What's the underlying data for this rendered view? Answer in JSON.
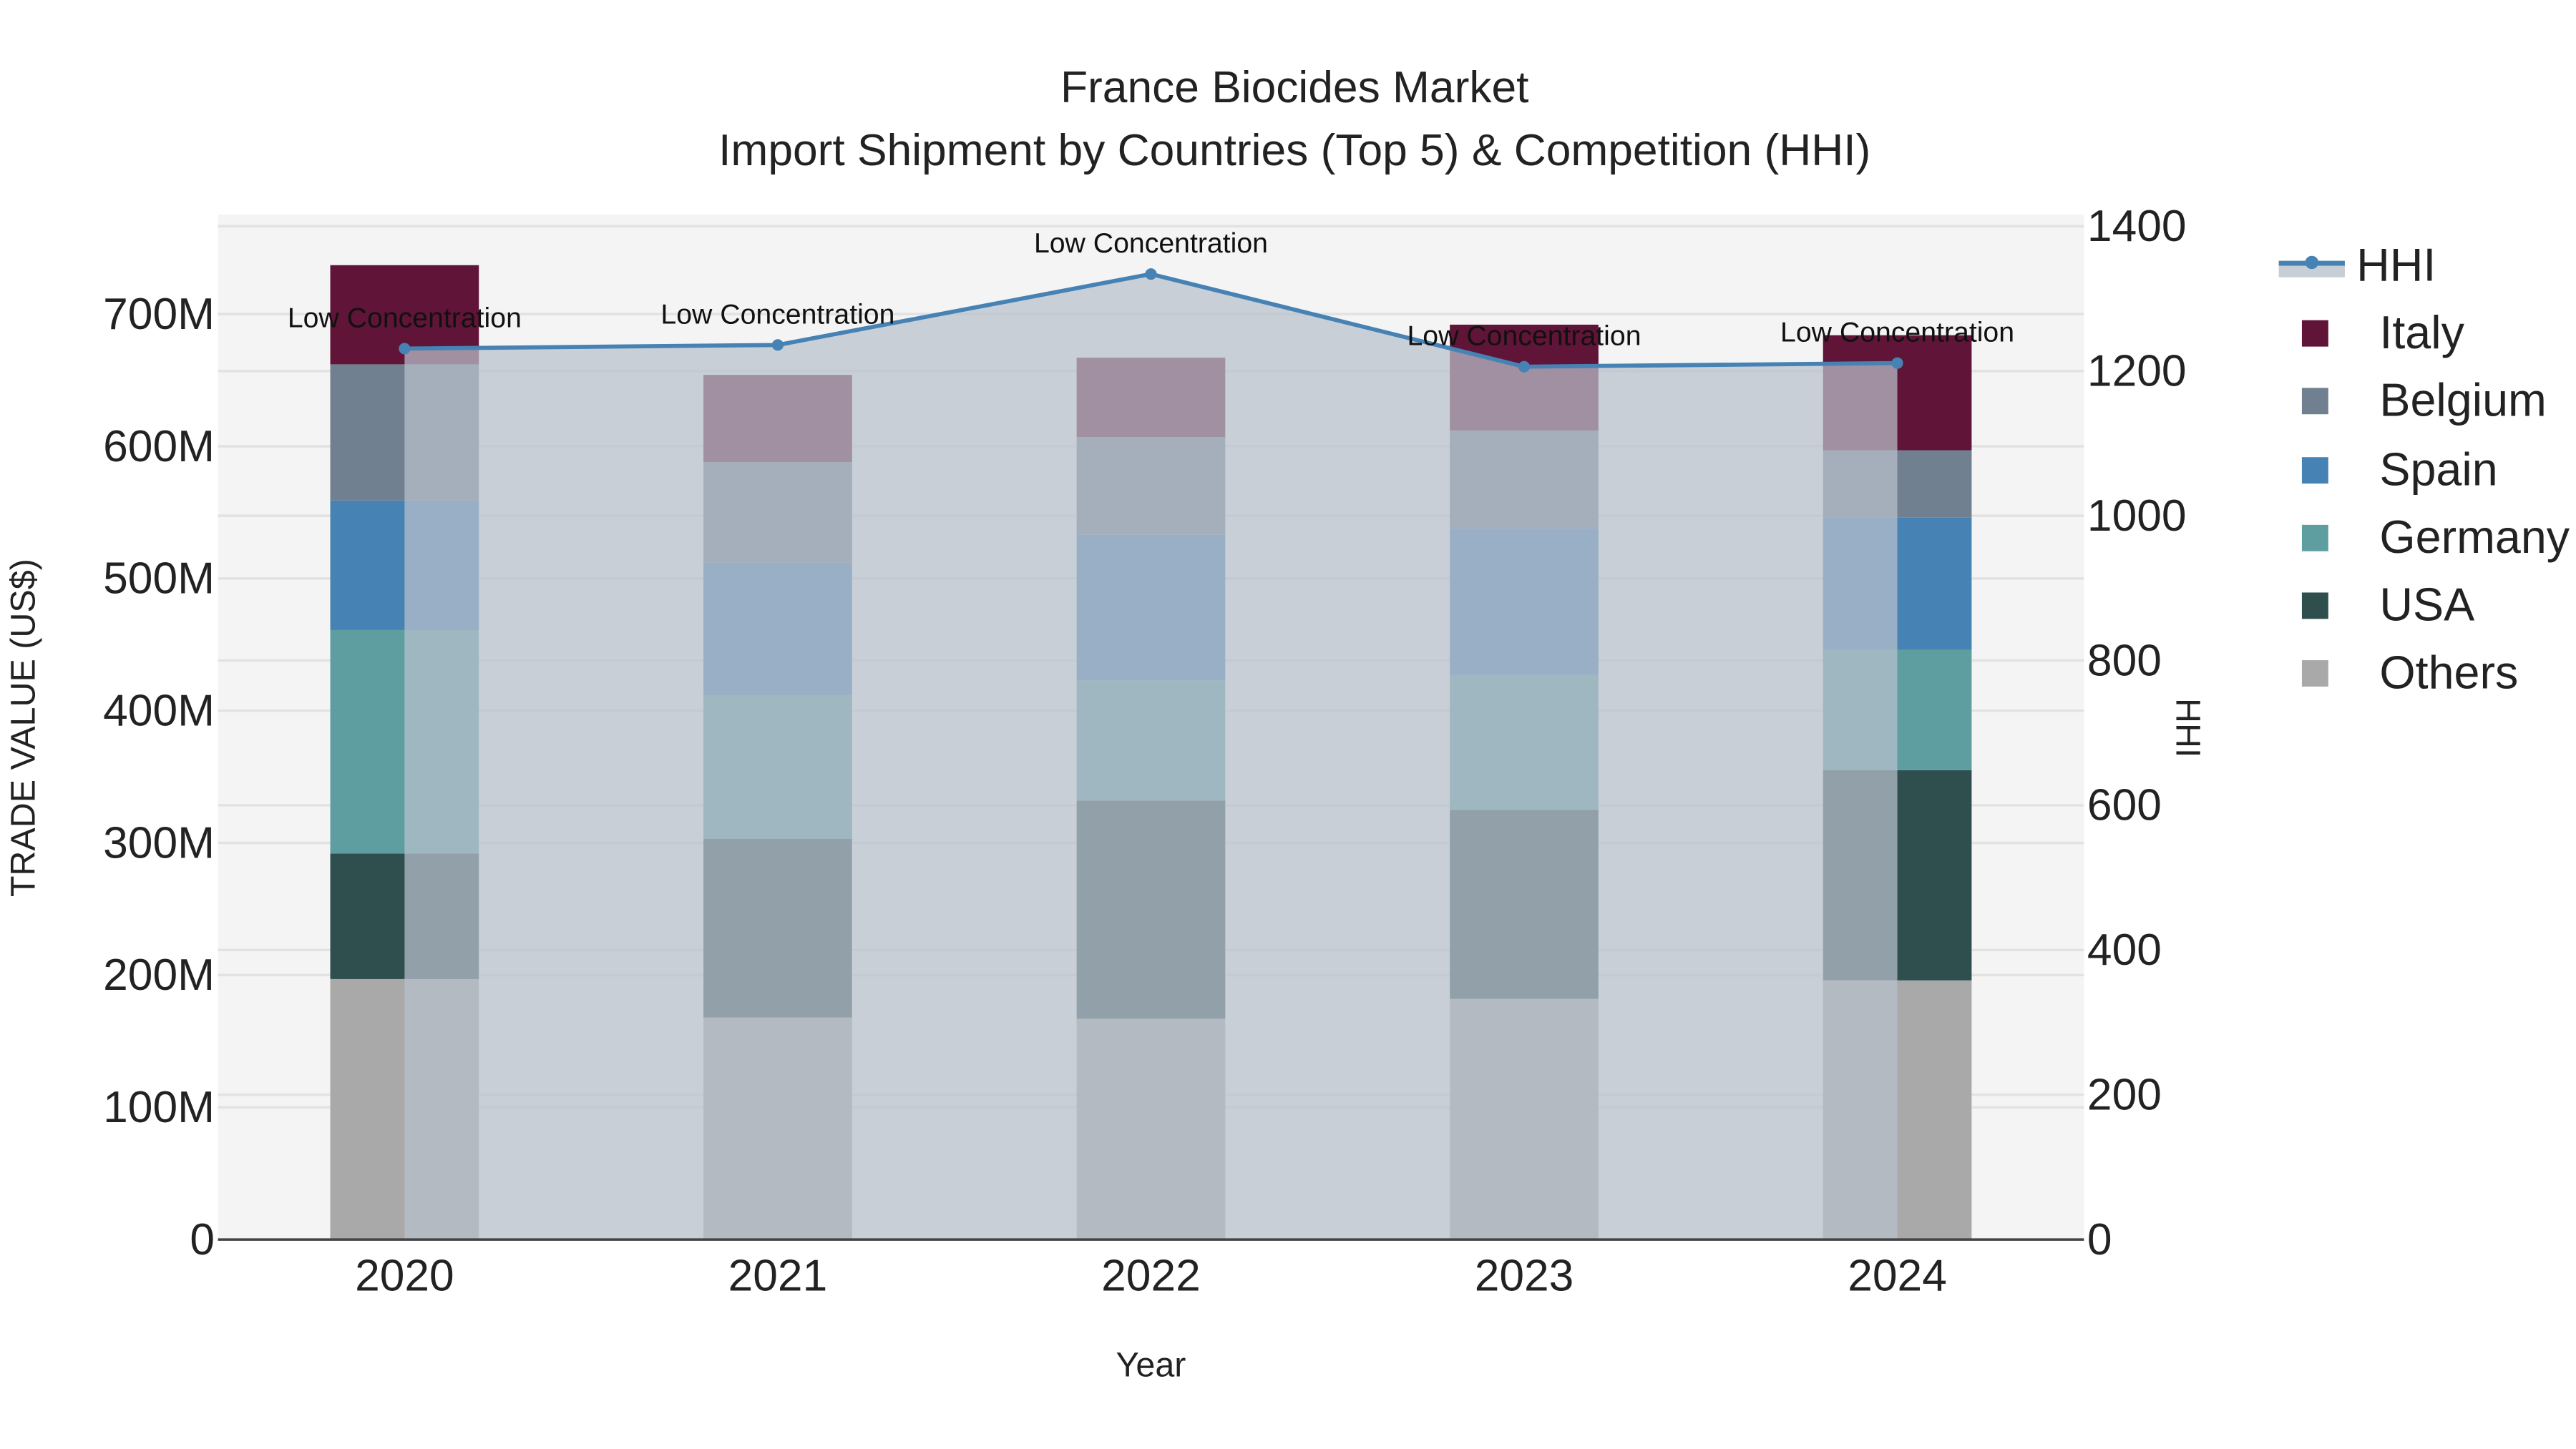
{
  "title": {
    "line1": "France Biocides Market",
    "line2": "Import Shipment by Countries (Top 5) & Competition (HHI)"
  },
  "axes": {
    "x_title": "Year",
    "y_left_title": "TRADE VALUE (US$)",
    "y_right_title": "HHI",
    "y_left_ticks": [
      "0",
      "100M",
      "200M",
      "300M",
      "400M",
      "500M",
      "600M",
      "700M"
    ],
    "y_right_ticks": [
      "0",
      "200",
      "400",
      "600",
      "800",
      "1000",
      "1200",
      "1400"
    ]
  },
  "legend": {
    "items": [
      {
        "label": "HHI",
        "color": "#4682b4",
        "type": "line"
      },
      {
        "label": "Italy",
        "color": "#601438",
        "type": "bar"
      },
      {
        "label": "Belgium",
        "color": "#708090",
        "type": "bar"
      },
      {
        "label": "Spain",
        "color": "#4682b4",
        "type": "bar"
      },
      {
        "label": "Germany",
        "color": "#5f9ea0",
        "type": "bar"
      },
      {
        "label": "USA",
        "color": "#2f4f4f",
        "type": "bar"
      },
      {
        "label": "Others",
        "color": "#a9a9a9",
        "type": "bar"
      }
    ]
  },
  "annotation_text": "Low Concentration",
  "chart_data": {
    "type": "bar",
    "title": "France Biocides Market — Import Shipment by Countries (Top 5) & Competition (HHI)",
    "xlabel": "Year",
    "ylabel": "TRADE VALUE (US$)",
    "y2label": "HHI",
    "categories": [
      "2020",
      "2021",
      "2022",
      "2023",
      "2024"
    ],
    "stacked": true,
    "ylim": [
      0,
      770000000
    ],
    "y2lim": [
      0,
      1420
    ],
    "grid": true,
    "legend_position": "right",
    "series": [
      {
        "name": "Others",
        "color": "#a9a9a9",
        "values": [
          197000000,
          168000000,
          167000000,
          182000000,
          196000000
        ]
      },
      {
        "name": "USA",
        "color": "#2f4f4f",
        "values": [
          95000000,
          135000000,
          165000000,
          143000000,
          159000000
        ]
      },
      {
        "name": "Germany",
        "color": "#5f9ea0",
        "values": [
          169000000,
          109000000,
          91000000,
          102000000,
          91000000
        ]
      },
      {
        "name": "Spain",
        "color": "#4682b4",
        "values": [
          98000000,
          100000000,
          110000000,
          111000000,
          100000000
        ]
      },
      {
        "name": "Belgium",
        "color": "#708090",
        "values": [
          103000000,
          76000000,
          74000000,
          74000000,
          51000000
        ]
      },
      {
        "name": "Italy",
        "color": "#601438",
        "values": [
          75000000,
          66000000,
          60000000,
          80000000,
          87000000
        ]
      }
    ],
    "line_series": {
      "name": "HHI",
      "axis": "right",
      "color": "#4682b4",
      "values": [
        1231,
        1236,
        1334,
        1206,
        1211
      ],
      "labels": [
        "Low Concentration",
        "Low Concentration",
        "Low Concentration",
        "Low Concentration",
        "Low Concentration"
      ]
    }
  }
}
